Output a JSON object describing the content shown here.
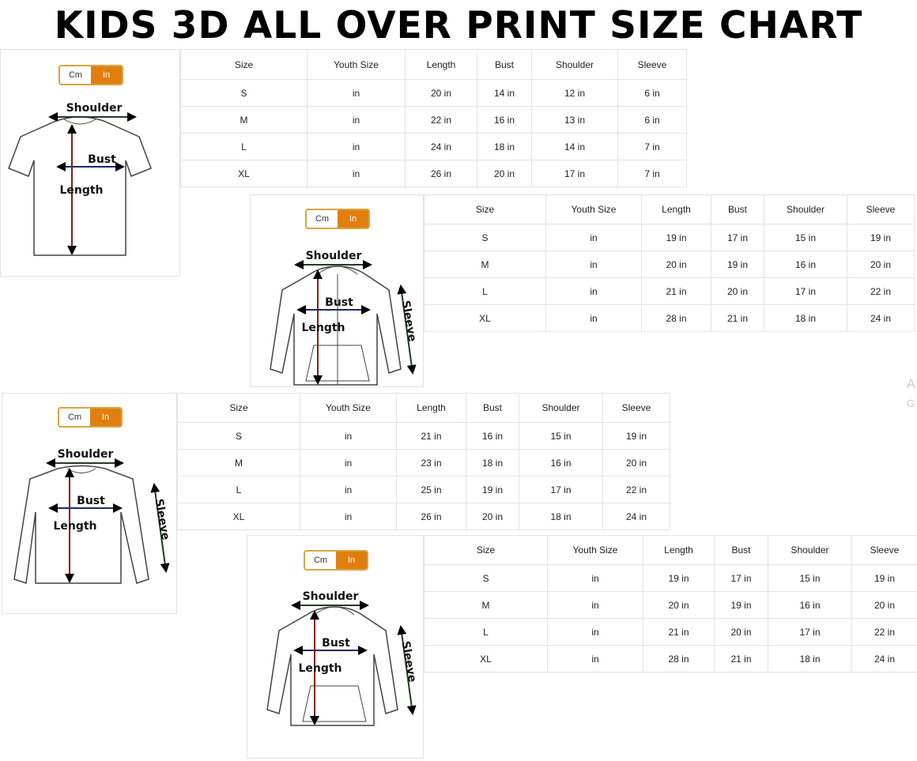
{
  "title": "KIDS 3D ALL OVER PRINT SIZE CHART",
  "unit_toggle": {
    "cm": "Cm",
    "in": "In",
    "selected": "In"
  },
  "colors": {
    "toggle_active": "#e07f10",
    "toggle_border": "#d9a441",
    "length_arrow": "#8b1a1a",
    "bust_arrow": "#1a2a6b",
    "shoulder_arrow": "#1f3d1f"
  },
  "columns": [
    "Size",
    "Youth Size",
    "Length",
    "Bust",
    "Shoulder",
    "Sleeve"
  ],
  "charts": [
    {
      "garment": "t-shirt",
      "labels": {
        "shoulder": "Shoulder",
        "bust": "Bust",
        "length": "Length"
      },
      "rows": [
        [
          "S",
          "in",
          "20 in",
          "14 in",
          "12 in",
          "6 in"
        ],
        [
          "M",
          "in",
          "22 in",
          "16 in",
          "13 in",
          "6 in"
        ],
        [
          "L",
          "in",
          "24 in",
          "18 in",
          "14 in",
          "7 in"
        ],
        [
          "XL",
          "in",
          "26 in",
          "20 in",
          "17 in",
          "7 in"
        ]
      ]
    },
    {
      "garment": "zip-hoodie",
      "labels": {
        "shoulder": "Shoulder",
        "bust": "Bust",
        "length": "Length",
        "sleeve": "Sleeve"
      },
      "rows": [
        [
          "S",
          "in",
          "19 in",
          "17 in",
          "15 in",
          "19 in"
        ],
        [
          "M",
          "in",
          "20 in",
          "19 in",
          "16 in",
          "20 in"
        ],
        [
          "L",
          "in",
          "21 in",
          "20 in",
          "17 in",
          "22 in"
        ],
        [
          "XL",
          "in",
          "28 in",
          "21 in",
          "18 in",
          "24 in"
        ]
      ]
    },
    {
      "garment": "long-sleeve",
      "labels": {
        "shoulder": "Shoulder",
        "bust": "Bust",
        "length": "Length",
        "sleeve": "Sleeve"
      },
      "rows": [
        [
          "S",
          "in",
          "21 in",
          "16 in",
          "15 in",
          "19 in"
        ],
        [
          "M",
          "in",
          "23 in",
          "18 in",
          "16 in",
          "20 in"
        ],
        [
          "L",
          "in",
          "25 in",
          "19 in",
          "17 in",
          "22 in"
        ],
        [
          "XL",
          "in",
          "26 in",
          "20 in",
          "18 in",
          "24 in"
        ]
      ]
    },
    {
      "garment": "pullover-hoodie",
      "labels": {
        "shoulder": "Shoulder",
        "bust": "Bust",
        "length": "Length",
        "sleeve": "Sleeve"
      },
      "rows": [
        [
          "S",
          "in",
          "19 in",
          "17 in",
          "15 in",
          "19 in"
        ],
        [
          "M",
          "in",
          "20 in",
          "19 in",
          "16 in",
          "20 in"
        ],
        [
          "L",
          "in",
          "21 in",
          "20 in",
          "17 in",
          "22 in"
        ],
        [
          "XL",
          "in",
          "28 in",
          "21 in",
          "18 in",
          "24 in"
        ]
      ]
    }
  ],
  "watermark": [
    "A",
    "G"
  ]
}
